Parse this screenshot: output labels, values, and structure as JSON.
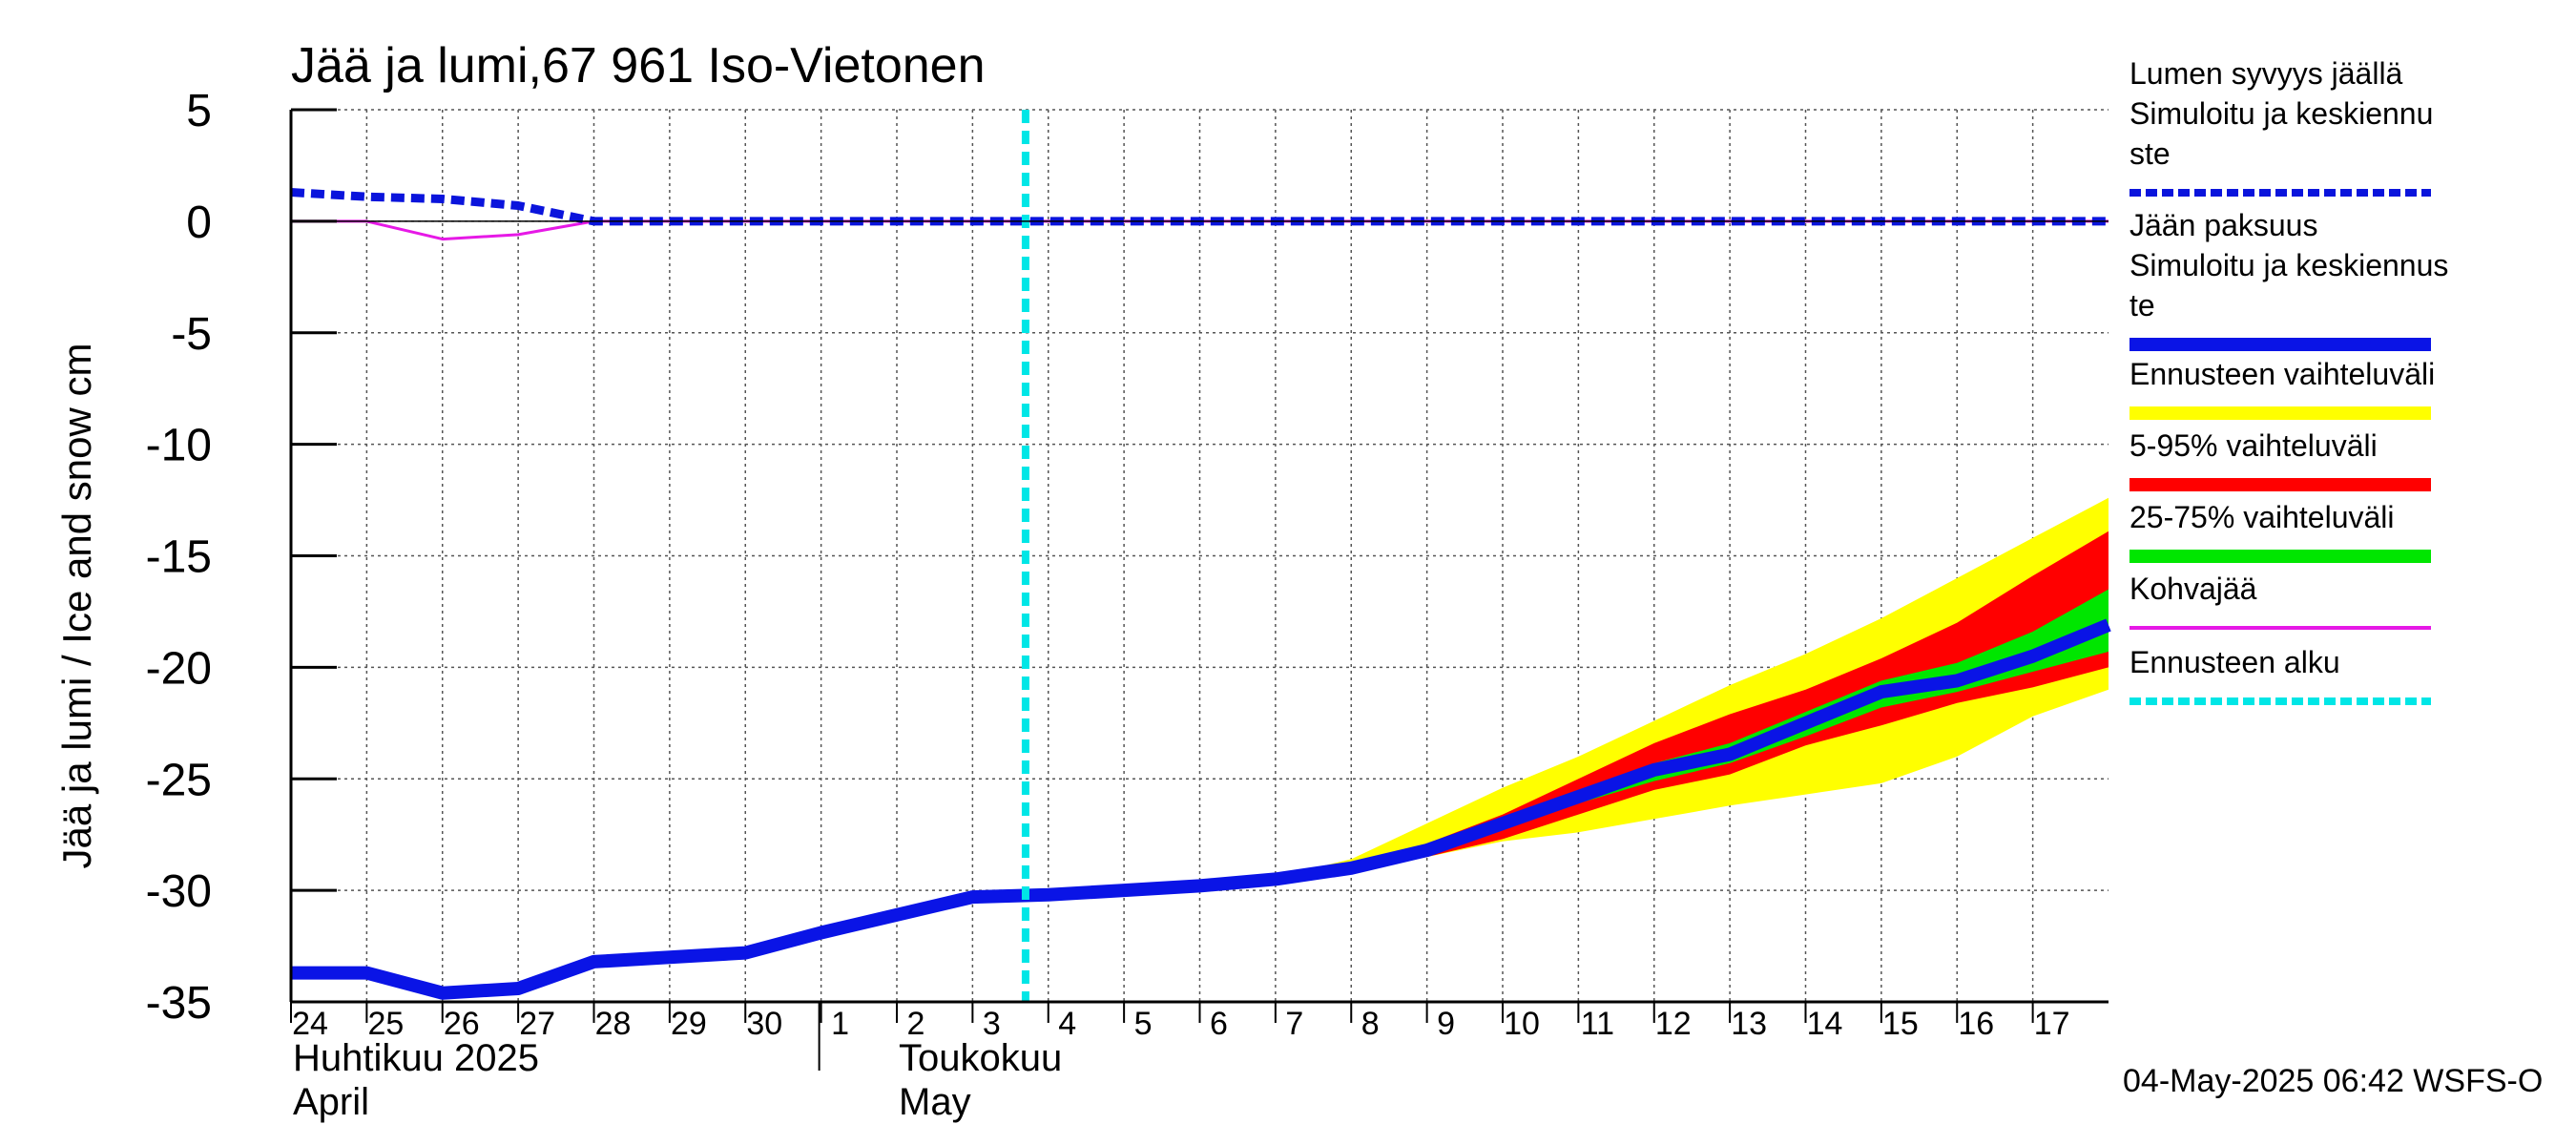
{
  "chart_data": {
    "type": "area",
    "title": "Jää ja lumi,67 961 Iso-Vietonen",
    "ylabel": "Jää ja lumi / Ice and snow    cm",
    "ylim": [
      -35,
      5
    ],
    "yticks": [
      "5",
      "0",
      "-5",
      "-10",
      "-15",
      "-20",
      "-25",
      "-30",
      "-35"
    ],
    "ytick_values": [
      5,
      0,
      -5,
      -10,
      -15,
      -20,
      -25,
      -30,
      -35
    ],
    "x_start_day": 0,
    "x_end_day": 24.0,
    "x_ticks": [
      {
        "label": "24",
        "day": 0
      },
      {
        "label": "25",
        "day": 1
      },
      {
        "label": "26",
        "day": 2
      },
      {
        "label": "27",
        "day": 3
      },
      {
        "label": "28",
        "day": 4
      },
      {
        "label": "29",
        "day": 5
      },
      {
        "label": "30",
        "day": 6
      },
      {
        "label": "1",
        "day": 7
      },
      {
        "label": "2",
        "day": 8
      },
      {
        "label": "3",
        "day": 9
      },
      {
        "label": "4",
        "day": 10
      },
      {
        "label": "5",
        "day": 11
      },
      {
        "label": "6",
        "day": 12
      },
      {
        "label": "7",
        "day": 13
      },
      {
        "label": "8",
        "day": 14
      },
      {
        "label": "9",
        "day": 15
      },
      {
        "label": "10",
        "day": 16
      },
      {
        "label": "11",
        "day": 17
      },
      {
        "label": "12",
        "day": 18
      },
      {
        "label": "13",
        "day": 19
      },
      {
        "label": "14",
        "day": 20
      },
      {
        "label": "15",
        "day": 21
      },
      {
        "label": "16",
        "day": 22
      },
      {
        "label": "17",
        "day": 23
      }
    ],
    "months": [
      {
        "line1": "Huhtikuu  2025",
        "line2": "April",
        "start_day": 0
      },
      {
        "line1": "Toukokuu",
        "line2": "May",
        "start_day": 8
      }
    ],
    "month_boundary_day": 7,
    "forecast_start_day": 9.7,
    "footer": "04-May-2025 06:42 WSFS-O",
    "series": [
      {
        "name": "Lumen syvyys jäällä Simuloitu ja keskiennuste",
        "style": "dashed",
        "color": "#0a14dc",
        "x": [
          0,
          1,
          2,
          3,
          4,
          24.0
        ],
        "y": [
          1.3,
          1.1,
          1.0,
          0.7,
          0.0,
          0.0
        ]
      },
      {
        "name": "Jään paksuus Simuloitu ja keskiennuste",
        "style": "solid",
        "color": "#0a14e6",
        "x": [
          0,
          1,
          2,
          3,
          4,
          5,
          6,
          7,
          8,
          9,
          10,
          11,
          12,
          13,
          14,
          15,
          16,
          17,
          18,
          19,
          20,
          21,
          22,
          23,
          24.0
        ],
        "y": [
          -33.7,
          -33.7,
          -34.6,
          -34.4,
          -33.2,
          -33.0,
          -32.8,
          -31.9,
          -31.1,
          -30.3,
          -30.2,
          -30.0,
          -29.8,
          -29.5,
          -29.0,
          -28.2,
          -27.0,
          -25.8,
          -24.6,
          -23.9,
          -22.5,
          -21.1,
          -20.6,
          -19.5,
          -18.1
        ]
      },
      {
        "name": "Kohvajää",
        "style": "solid",
        "color": "#e619e6",
        "x": [
          0,
          1,
          2,
          3,
          4,
          24.0
        ],
        "y": [
          0.0,
          0.0,
          -0.8,
          -0.6,
          0.0,
          0.0
        ]
      }
    ],
    "bands": [
      {
        "name": "Ennusteen vaihteluväli",
        "color": "#ffff00",
        "x": [
          13,
          14,
          15,
          16,
          17,
          18,
          19,
          20,
          21,
          22,
          23,
          24.0
        ],
        "upper": [
          -29.4,
          -28.6,
          -27.0,
          -25.4,
          -24.0,
          -22.4,
          -20.8,
          -19.4,
          -17.8,
          -16.0,
          -14.2,
          -12.4
        ],
        "lower": [
          -29.6,
          -29.2,
          -28.5,
          -27.8,
          -27.4,
          -26.8,
          -26.2,
          -25.7,
          -25.2,
          -24.0,
          -22.2,
          -21.0
        ]
      },
      {
        "name": "5-95% vaihteluväli",
        "color": "#ff0000",
        "x": [
          13,
          14,
          15,
          16,
          17,
          18,
          19,
          20,
          21,
          22,
          23,
          24.0
        ],
        "upper": [
          -29.4,
          -28.9,
          -27.9,
          -26.6,
          -25.0,
          -23.4,
          -22.1,
          -21.0,
          -19.6,
          -18.0,
          -15.9,
          -13.9
        ],
        "lower": [
          -29.6,
          -29.1,
          -28.5,
          -27.7,
          -26.6,
          -25.5,
          -24.8,
          -23.5,
          -22.6,
          -21.6,
          -20.9,
          -20.0
        ]
      },
      {
        "name": "25-75% vaihteluväli",
        "color": "#00e600",
        "x": [
          13,
          14,
          15,
          16,
          17,
          18,
          19,
          20,
          21,
          22,
          23,
          24.0
        ],
        "upper": [
          -29.5,
          -29.0,
          -28.0,
          -26.7,
          -25.5,
          -24.3,
          -23.4,
          -22.0,
          -20.6,
          -19.8,
          -18.4,
          -16.5
        ],
        "lower": [
          -29.5,
          -29.1,
          -28.4,
          -27.3,
          -26.1,
          -25.1,
          -24.3,
          -23.1,
          -21.8,
          -21.1,
          -20.2,
          -19.3
        ]
      }
    ],
    "legend": [
      {
        "lines": [
          "Lumen syvyys jäällä",
          "   Simuloitu ja keskiennu",
          "ste"
        ],
        "kind": "dashed",
        "color": "#0a14dc"
      },
      {
        "lines": [
          "Jään paksuus",
          "  Simuloitu ja keskiennus",
          "te"
        ],
        "kind": "thick",
        "color": "#0a14e6"
      },
      {
        "lines": [
          "Ennusteen vaihteluväli"
        ],
        "kind": "thick",
        "color": "#ffff00"
      },
      {
        "lines": [
          "5-95% vaihteluväli"
        ],
        "kind": "thick",
        "color": "#ff0000"
      },
      {
        "lines": [
          "25-75% vaihteluväli"
        ],
        "kind": "thick",
        "color": "#00e600"
      },
      {
        "lines": [
          "Kohvajää"
        ],
        "kind": "thin",
        "color": "#e619e6"
      },
      {
        "lines": [
          "Ennusteen alku"
        ],
        "kind": "dashed",
        "color": "#00e6e6"
      }
    ]
  }
}
